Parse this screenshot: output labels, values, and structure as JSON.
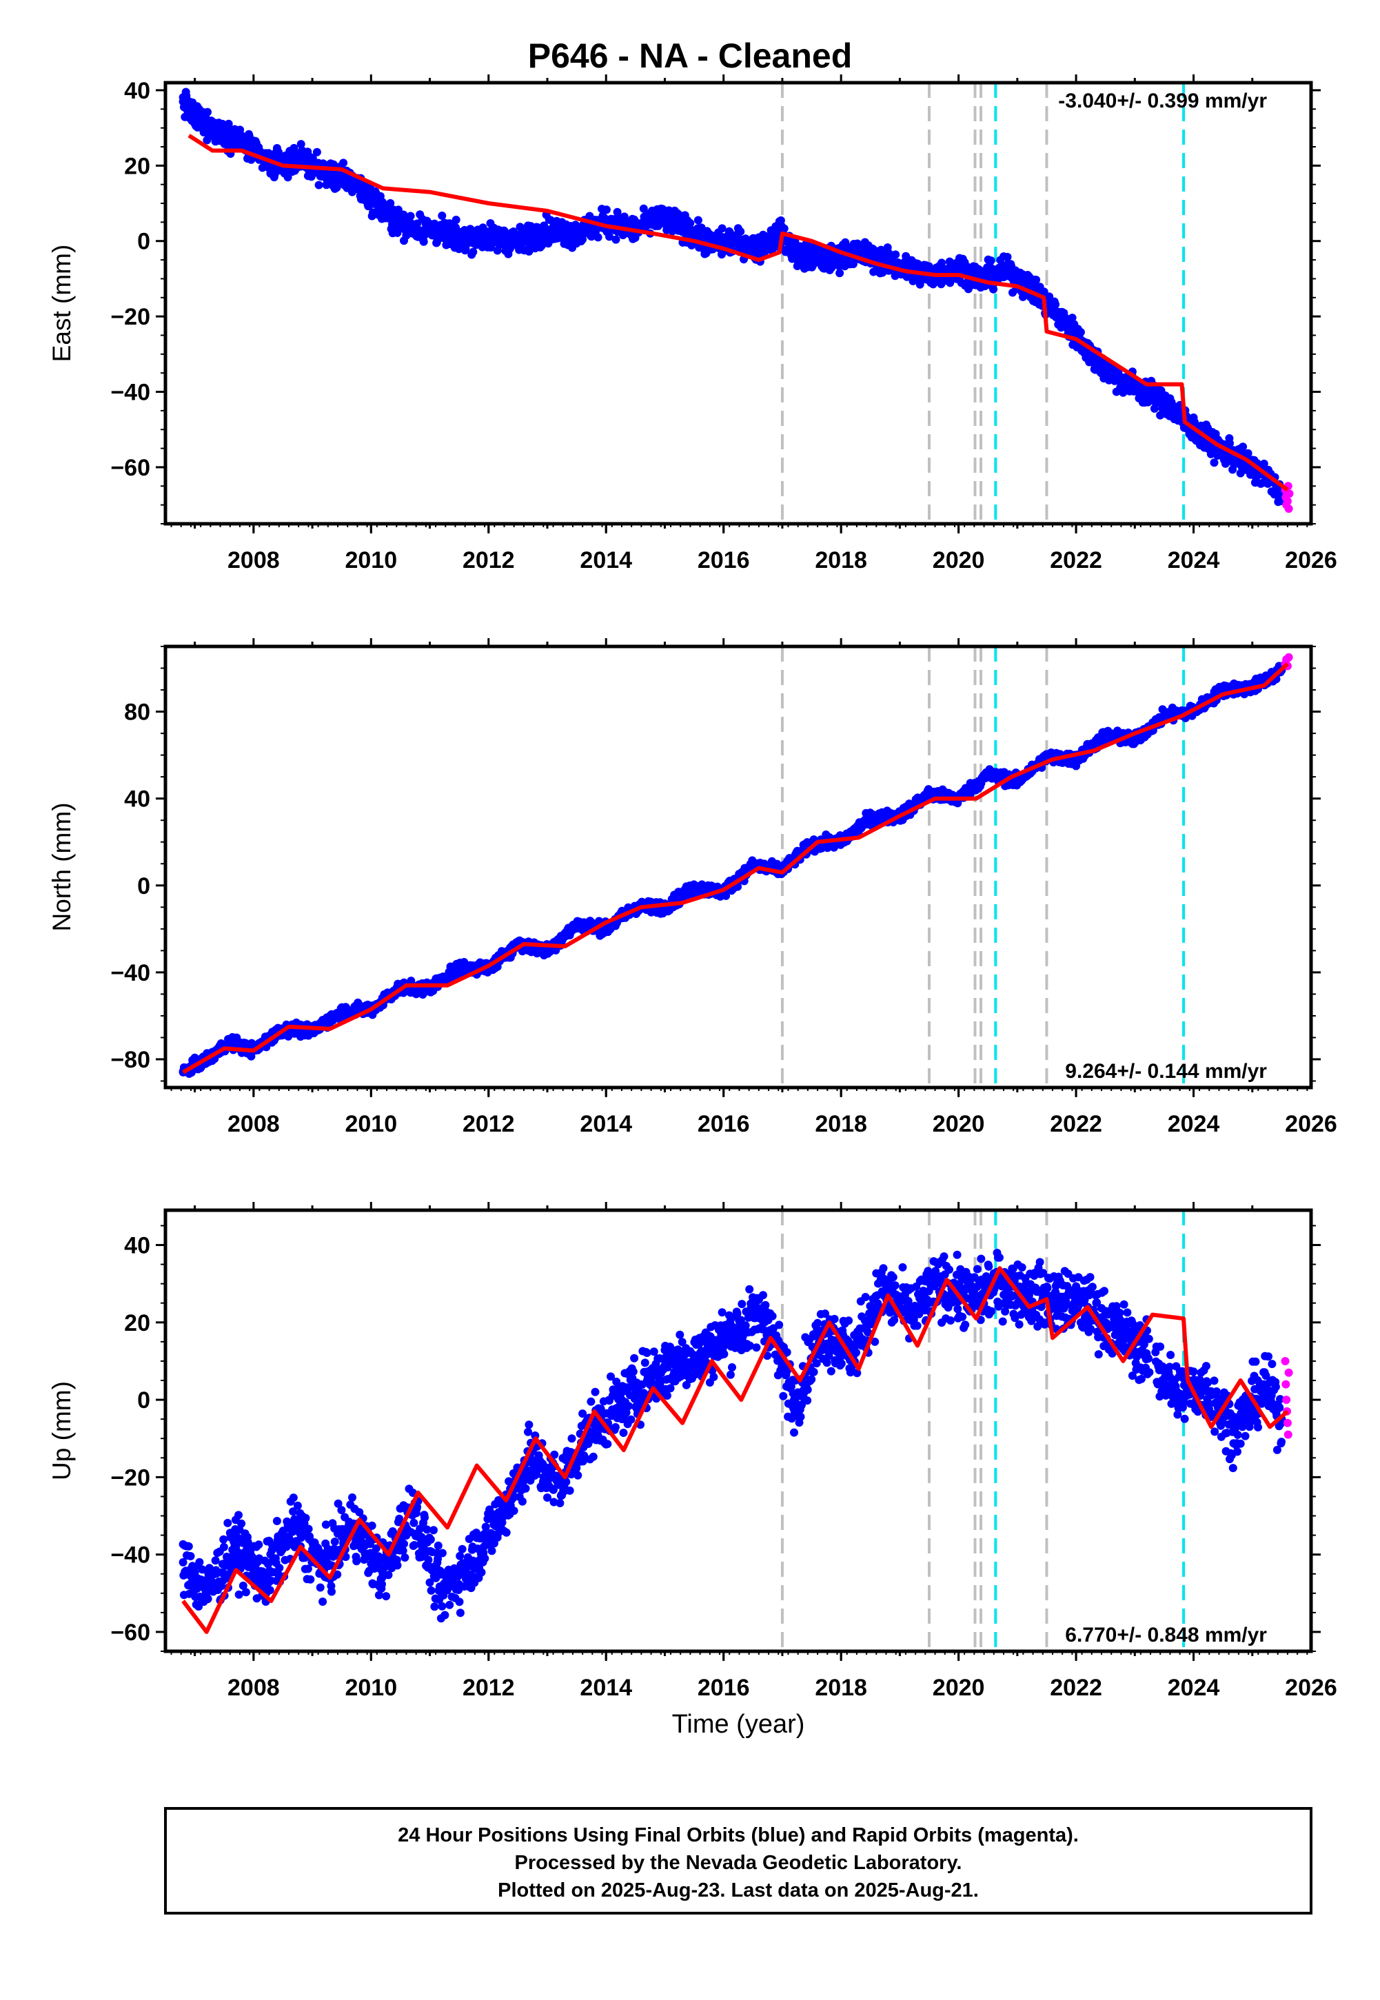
{
  "page_title": "P646  - NA - Cleaned",
  "footer": {
    "line1": "24 Hour Positions Using Final Orbits (blue) and Rapid Orbits (magenta).",
    "line2": "Processed by the Nevada Geodetic Laboratory.",
    "line3": "Plotted on 2025-Aug-23. Last data on 2025-Aug-21."
  },
  "colors": {
    "final_orbits": "#0000ff",
    "rapid_orbits": "#ff00ff",
    "model_fit": "#ff0000",
    "equipment_change": "#c0c0c0",
    "earthquake": "#00e5ee"
  },
  "chart_data": [
    {
      "type": "scatter",
      "panel": "east",
      "ylabel": "East (mm)",
      "xlabel": "",
      "xlim": [
        2006.5,
        2026.0
      ],
      "ylim": [
        -75,
        42
      ],
      "xticks": [
        "2008",
        "2010",
        "2012",
        "2014",
        "2016",
        "2018",
        "2020",
        "2022",
        "2024",
        "2026"
      ],
      "yticks": [
        "40",
        "20",
        "0",
        "−20",
        "−40",
        "−60"
      ],
      "ytick_values": [
        40,
        20,
        0,
        -20,
        -40,
        -60
      ],
      "rate_label": "-3.040+/- 0.399 mm/yr",
      "rate_position": "top-right",
      "grid": false,
      "equipment_change_years": [
        2017.0,
        2019.5,
        2020.28,
        2020.38,
        2021.5
      ],
      "earthquake_years": [
        2020.63,
        2023.83
      ],
      "model_fit": {
        "x": [
          2006.9,
          2007.3,
          2007.8,
          2008.5,
          2009.5,
          2010.2,
          2011.0,
          2012.0,
          2013.0,
          2014.0,
          2014.8,
          2015.5,
          2016.0,
          2016.6,
          2016.95,
          2017.0,
          2017.5,
          2018.0,
          2018.6,
          2019.1,
          2019.6,
          2020.0,
          2020.5,
          2021.0,
          2021.45,
          2021.5,
          2022.0,
          2022.6,
          2023.2,
          2023.8,
          2023.85,
          2024.4,
          2024.9,
          2025.6
        ],
        "y": [
          28,
          24,
          24,
          20,
          19,
          14,
          13,
          10,
          8,
          4,
          2,
          0,
          -2,
          -5,
          -3,
          2,
          0,
          -3,
          -6,
          -8,
          -9,
          -9,
          -11,
          -12,
          -15,
          -24,
          -26,
          -32,
          -38,
          -38,
          -48,
          -54,
          -58,
          -66
        ]
      },
      "final_orbits": {
        "x": [
          2006.8,
          2007.0,
          2007.3,
          2007.6,
          2007.9,
          2008.3,
          2008.8,
          2009.2,
          2009.7,
          2010.2,
          2010.6,
          2011.0,
          2011.5,
          2012.0,
          2012.5,
          2013.0,
          2013.5,
          2014.0,
          2014.5,
          2014.9,
          2015.3,
          2015.8,
          2016.2,
          2016.6,
          2016.95,
          2017.3,
          2017.8,
          2018.2,
          2018.7,
          2019.2,
          2019.6,
          2020.0,
          2020.4,
          2020.8,
          2021.2,
          2021.6,
          2022.0,
          2022.4,
          2022.8,
          2023.2,
          2023.6,
          2024.0,
          2024.4,
          2024.8,
          2025.2,
          2025.55
        ],
        "y": [
          37,
          33,
          30,
          28,
          25,
          20,
          22,
          18,
          16,
          8,
          4,
          3,
          1,
          1,
          0,
          3,
          2,
          5,
          3,
          6,
          4,
          -1,
          0,
          -2,
          2,
          -4,
          -5,
          -3,
          -5,
          -8,
          -9,
          -7,
          -10,
          -8,
          -12,
          -18,
          -25,
          -33,
          -37,
          -40,
          -44,
          -50,
          -55,
          -58,
          -62,
          -68
        ]
      },
      "rapid_orbits": {
        "x": [
          2025.56,
          2025.57,
          2025.58,
          2025.59,
          2025.6,
          2025.61,
          2025.62,
          2025.63
        ],
        "y": [
          -66,
          -68,
          -70,
          -67,
          -69,
          -65,
          -71,
          -67
        ]
      }
    },
    {
      "type": "scatter",
      "panel": "north",
      "ylabel": "North (mm)",
      "xlabel": "",
      "xlim": [
        2006.5,
        2026.0
      ],
      "ylim": [
        -93,
        110
      ],
      "xticks": [
        "2008",
        "2010",
        "2012",
        "2014",
        "2016",
        "2018",
        "2020",
        "2022",
        "2024",
        "2026"
      ],
      "yticks": [
        "80",
        "40",
        "0",
        "−40",
        "−80"
      ],
      "ytick_values": [
        80,
        40,
        0,
        -40,
        -80
      ],
      "rate_label": "9.264+/- 0.144 mm/yr",
      "rate_position": "bottom-right",
      "grid": false,
      "equipment_change_years": [
        2017.0,
        2019.5,
        2020.28,
        2020.38,
        2021.5
      ],
      "earthquake_years": [
        2020.63,
        2023.83
      ],
      "model_fit": {
        "x": [
          2006.8,
          2007.5,
          2008.0,
          2008.6,
          2009.3,
          2010.0,
          2010.6,
          2011.3,
          2012.0,
          2012.6,
          2013.3,
          2014.0,
          2014.6,
          2015.3,
          2016.0,
          2016.6,
          2017.0,
          2017.6,
          2018.3,
          2019.0,
          2019.6,
          2020.3,
          2020.9,
          2021.6,
          2022.3,
          2023.0,
          2023.8,
          2024.5,
          2025.2,
          2025.6
        ],
        "y": [
          -86,
          -75,
          -76,
          -65,
          -66,
          -57,
          -46,
          -46,
          -37,
          -27,
          -28,
          -17,
          -10,
          -8,
          -2,
          8,
          6,
          20,
          22,
          32,
          40,
          40,
          50,
          58,
          62,
          70,
          78,
          88,
          92,
          102
        ]
      },
      "final_orbits": {
        "x": [
          2006.8,
          2007.2,
          2007.6,
          2008.0,
          2008.5,
          2009.0,
          2009.5,
          2010.0,
          2010.5,
          2011.0,
          2011.5,
          2012.0,
          2012.5,
          2013.0,
          2013.5,
          2014.0,
          2014.5,
          2015.0,
          2015.5,
          2016.0,
          2016.5,
          2017.0,
          2017.5,
          2018.0,
          2018.5,
          2019.0,
          2019.5,
          2020.0,
          2020.5,
          2021.0,
          2021.5,
          2022.0,
          2022.5,
          2023.0,
          2023.5,
          2024.0,
          2024.5,
          2025.0,
          2025.5
        ],
        "y": [
          -86,
          -80,
          -72,
          -76,
          -66,
          -67,
          -58,
          -57,
          -47,
          -47,
          -38,
          -38,
          -27,
          -30,
          -18,
          -20,
          -10,
          -10,
          -1,
          -3,
          9,
          7,
          19,
          20,
          31,
          32,
          42,
          40,
          51,
          48,
          59,
          58,
          69,
          67,
          78,
          80,
          90,
          91,
          99
        ]
      },
      "rapid_orbits": {
        "x": [
          2025.56,
          2025.58,
          2025.6,
          2025.62
        ],
        "y": [
          102,
          104,
          101,
          105
        ]
      }
    },
    {
      "type": "scatter",
      "panel": "up",
      "ylabel": "Up (mm)",
      "xlabel": "Time (year)",
      "xlim": [
        2006.5,
        2026.0
      ],
      "ylim": [
        -65,
        49
      ],
      "xticks": [
        "2008",
        "2010",
        "2012",
        "2014",
        "2016",
        "2018",
        "2020",
        "2022",
        "2024",
        "2026"
      ],
      "yticks": [
        "40",
        "20",
        "0",
        "−20",
        "−40",
        "−60"
      ],
      "ytick_values": [
        40,
        20,
        0,
        -20,
        -40,
        -60
      ],
      "rate_label": "6.770+/- 0.848 mm/yr",
      "rate_position": "bottom-right",
      "grid": false,
      "equipment_change_years": [
        2017.0,
        2019.5,
        2020.28,
        2020.38,
        2021.5
      ],
      "earthquake_years": [
        2020.63,
        2023.83
      ],
      "model_fit": {
        "x": [
          2006.8,
          2007.2,
          2007.7,
          2008.3,
          2008.8,
          2009.3,
          2009.8,
          2010.3,
          2010.8,
          2011.3,
          2011.8,
          2012.3,
          2012.8,
          2013.3,
          2013.8,
          2014.3,
          2014.8,
          2015.3,
          2015.8,
          2016.3,
          2016.8,
          2017.3,
          2017.8,
          2018.3,
          2018.8,
          2019.3,
          2019.8,
          2020.3,
          2020.7,
          2021.2,
          2021.5,
          2021.6,
          2022.2,
          2022.8,
          2023.3,
          2023.83,
          2023.9,
          2024.3,
          2024.8,
          2025.3,
          2025.6
        ],
        "y": [
          -52,
          -60,
          -44,
          -52,
          -38,
          -46,
          -31,
          -40,
          -24,
          -33,
          -17,
          -26,
          -10,
          -20,
          -3,
          -13,
          3,
          -6,
          10,
          0,
          16,
          5,
          20,
          8,
          27,
          14,
          31,
          21,
          34,
          24,
          26,
          16,
          24,
          10,
          22,
          21,
          5,
          -7,
          5,
          -7,
          -3
        ]
      },
      "final_orbits": {
        "x": [
          2006.8,
          2007.2,
          2007.7,
          2008.2,
          2008.7,
          2009.2,
          2009.7,
          2010.2,
          2010.7,
          2011.2,
          2011.7,
          2012.2,
          2012.7,
          2013.2,
          2013.7,
          2014.2,
          2014.7,
          2015.2,
          2015.7,
          2016.2,
          2016.7,
          2017.2,
          2017.7,
          2018.2,
          2018.7,
          2019.2,
          2019.7,
          2020.2,
          2020.7,
          2021.2,
          2021.7,
          2022.2,
          2022.7,
          2023.2,
          2023.7,
          2024.2,
          2024.7,
          2025.2,
          2025.5
        ],
        "y": [
          -42,
          -50,
          -38,
          -46,
          -33,
          -44,
          -32,
          -45,
          -28,
          -50,
          -42,
          -30,
          -15,
          -22,
          -8,
          -2,
          5,
          10,
          12,
          18,
          22,
          0,
          18,
          12,
          28,
          22,
          30,
          26,
          30,
          27,
          26,
          24,
          18,
          12,
          2,
          3,
          -8,
          4,
          -5
        ]
      },
      "rapid_orbits": {
        "x": [
          2025.56,
          2025.57,
          2025.58,
          2025.59,
          2025.6,
          2025.61,
          2025.62
        ],
        "y": [
          10,
          4,
          0,
          -3,
          -6,
          -9,
          7
        ]
      }
    }
  ]
}
